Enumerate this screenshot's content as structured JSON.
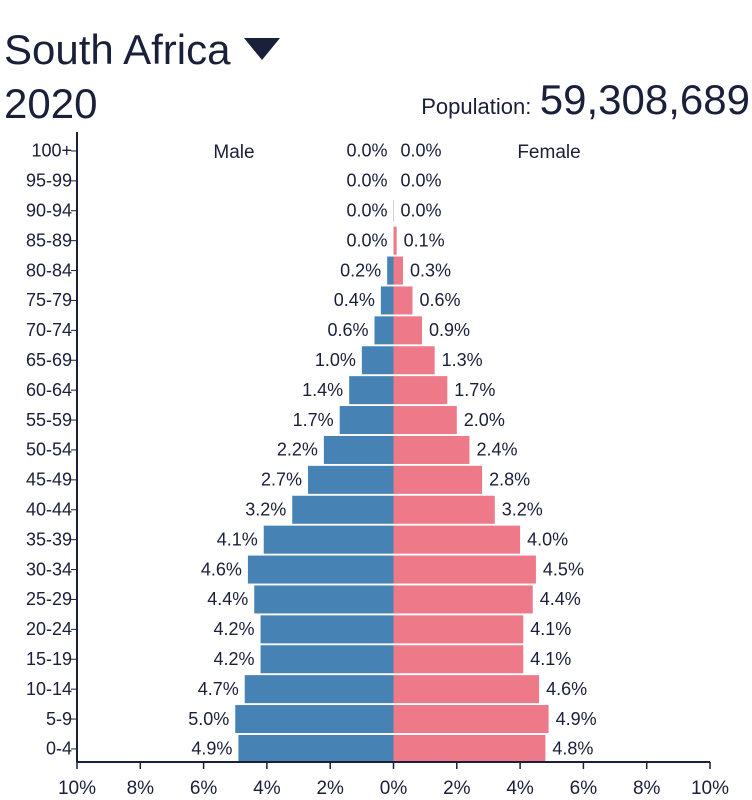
{
  "header": {
    "country": "South Africa",
    "year": "2020",
    "population_label": "Population:",
    "population_value": "59,308,689"
  },
  "colors": {
    "male": "#4682b4",
    "female": "#ee7989",
    "text": "#1a1f3a"
  },
  "chart_data": {
    "type": "bar",
    "orientation": "horizontal",
    "title": "South Africa 2020",
    "categories": [
      "100+",
      "95-99",
      "90-94",
      "85-89",
      "80-84",
      "75-79",
      "70-74",
      "65-69",
      "60-64",
      "55-59",
      "50-54",
      "45-49",
      "40-44",
      "35-39",
      "30-34",
      "25-29",
      "20-24",
      "15-19",
      "10-14",
      "5-9",
      "0-4"
    ],
    "series": [
      {
        "name": "Male",
        "side": "left",
        "values": [
          0.0,
          0.0,
          0.0,
          0.0,
          0.2,
          0.4,
          0.6,
          1.0,
          1.4,
          1.7,
          2.2,
          2.7,
          3.2,
          4.1,
          4.6,
          4.4,
          4.2,
          4.2,
          4.7,
          5.0,
          4.9
        ],
        "labels": [
          "0.0%",
          "0.0%",
          "0.0%",
          "0.0%",
          "0.2%",
          "0.4%",
          "0.6%",
          "1.0%",
          "1.4%",
          "1.7%",
          "2.2%",
          "2.7%",
          "3.2%",
          "4.1%",
          "4.6%",
          "4.4%",
          "4.2%",
          "4.2%",
          "4.7%",
          "5.0%",
          "4.9%"
        ]
      },
      {
        "name": "Female",
        "side": "right",
        "values": [
          0.0,
          0.0,
          0.0,
          0.1,
          0.3,
          0.6,
          0.9,
          1.3,
          1.7,
          2.0,
          2.4,
          2.8,
          3.2,
          4.0,
          4.5,
          4.4,
          4.1,
          4.1,
          4.6,
          4.9,
          4.8
        ],
        "labels": [
          "0.0%",
          "0.0%",
          "0.0%",
          "0.1%",
          "0.3%",
          "0.6%",
          "0.9%",
          "1.3%",
          "1.7%",
          "2.0%",
          "2.4%",
          "2.8%",
          "3.2%",
          "4.0%",
          "4.5%",
          "4.4%",
          "4.1%",
          "4.1%",
          "4.6%",
          "4.9%",
          "4.8%"
        ]
      }
    ],
    "xlim": [
      -10,
      10
    ],
    "x_ticks": [
      -10,
      -8,
      -6,
      -4,
      -2,
      0,
      2,
      4,
      6,
      8,
      10
    ],
    "x_tick_labels": [
      "10%",
      "8%",
      "6%",
      "4%",
      "2%",
      "0%",
      "2%",
      "4%",
      "6%",
      "8%",
      "10%"
    ],
    "legend": [
      "Male",
      "Female"
    ],
    "grid": false
  }
}
